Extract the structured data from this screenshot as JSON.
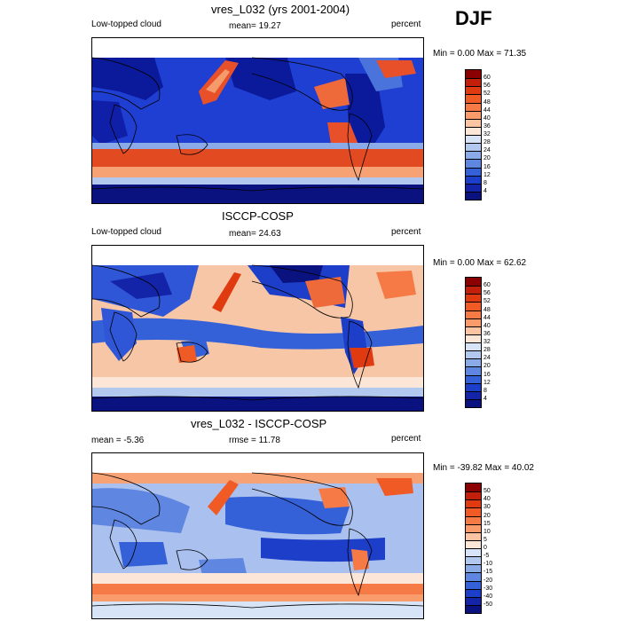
{
  "season": "DJF",
  "panels": [
    {
      "title": "vres_L032 (yrs 2001-2004)",
      "left": "Low-topped cloud",
      "center": "mean=  19.27",
      "right": "percent",
      "minmax": "Min =   0.00 Max =  71.35",
      "scale": "abs"
    },
    {
      "title": "ISCCP-COSP",
      "left": "Low-topped cloud",
      "center": "mean=  24.63",
      "right": "percent",
      "minmax": "Min =   0.00 Max =  62.62",
      "scale": "abs"
    },
    {
      "title": "vres_L032 - ISCCP-COSP",
      "left": "mean =  -5.36",
      "center": "rmse =  11.78",
      "right": "percent",
      "minmax": "Min = -39.82 Max =  40.02",
      "scale": "diff"
    }
  ],
  "colorbars": {
    "abs": {
      "levels": [
        "60",
        "56",
        "52",
        "48",
        "44",
        "40",
        "36",
        "32",
        "28",
        "24",
        "20",
        "16",
        "12",
        "8",
        "4"
      ],
      "colors": [
        "#8b0000",
        "#c2200a",
        "#e03a10",
        "#ef5a25",
        "#f57a45",
        "#f99b6b",
        "#fbc4a2",
        "#fbe6d7",
        "#d7e4f7",
        "#b2c8ef",
        "#8aaae8",
        "#5f86e0",
        "#3460d8",
        "#1d3ec8",
        "#1424a8",
        "#0a1280"
      ]
    },
    "diff": {
      "levels": [
        "50",
        "40",
        "30",
        "20",
        "15",
        "10",
        "5",
        "0",
        "-5",
        "-10",
        "-15",
        "-20",
        "-30",
        "-40",
        "-50"
      ],
      "colors": [
        "#8b0000",
        "#c2200a",
        "#e03a10",
        "#ef5a25",
        "#f57a45",
        "#f99b6b",
        "#fbc4a2",
        "#fbe6d7",
        "#d7e4f7",
        "#b2c8ef",
        "#8aaae8",
        "#5f86e0",
        "#3460d8",
        "#1d3ec8",
        "#1424a8",
        "#0a1280"
      ]
    }
  }
}
